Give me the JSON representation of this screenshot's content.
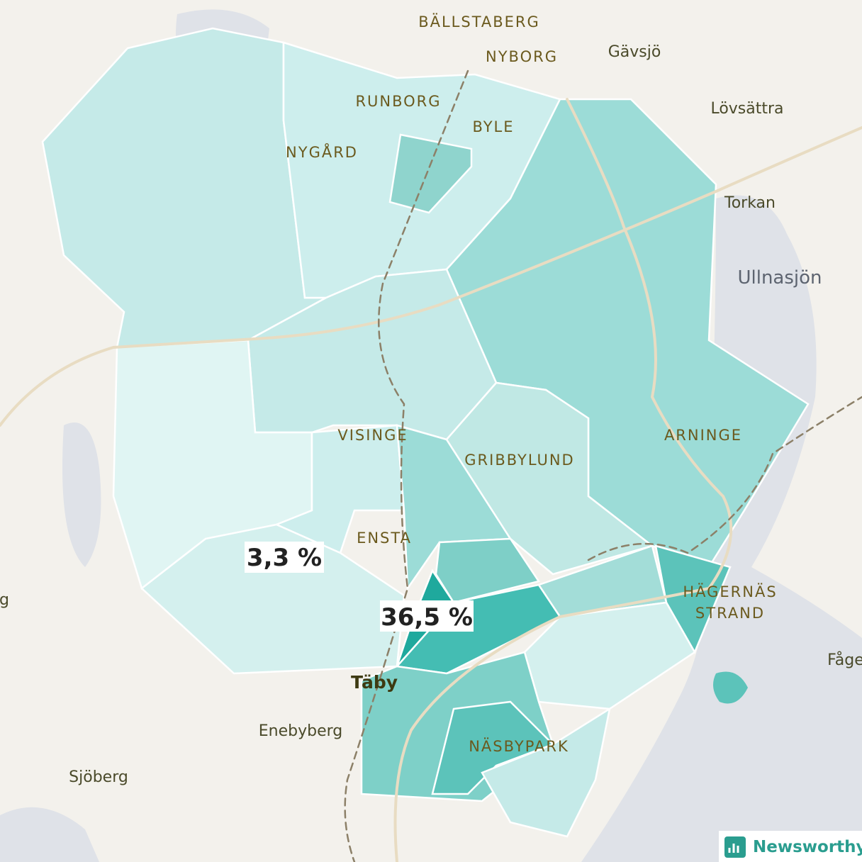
{
  "map": {
    "districts": [
      "BÄLLSTABERG",
      "NYBORG",
      "RUNBORG",
      "BYLE",
      "NYGÅRD",
      "VISINGE",
      "GRIBBYLUND",
      "ARNINGE",
      "ENSTA",
      "HÄGERNÄS",
      "STRAND",
      "NÄSBYPARK"
    ],
    "towns": [
      "Gävsjö",
      "Lövsättra",
      "Torkan",
      "Fågel",
      "Enebyberg",
      "Sjöberg",
      "g"
    ],
    "lake": "Ullnasjön",
    "city": "Täby",
    "callouts": [
      "3,3 %",
      "36,5 %"
    ]
  },
  "brand": "Newsworthy"
}
